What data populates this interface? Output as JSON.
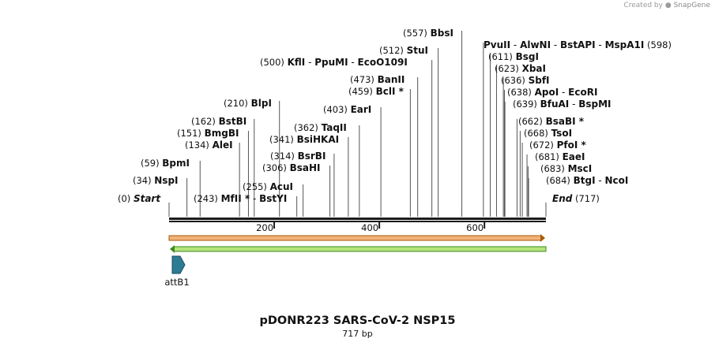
{
  "watermark": {
    "prefix": "Created by",
    "brand": "SnapGene"
  },
  "plasmid": {
    "name": "pDONR223 SARS-CoV-2 NSP15",
    "length_label": "717 bp",
    "length": 717
  },
  "ruler": {
    "ticks": [
      200,
      400,
      600
    ]
  },
  "start_site": {
    "pos_label": "(0)",
    "label": "Start",
    "position": 0
  },
  "end_site": {
    "pos_label": "(717)",
    "label": "End",
    "position": 717
  },
  "sites": [
    {
      "pos_label": "(34)",
      "names": [
        "NspI"
      ],
      "position": 34
    },
    {
      "pos_label": "(59)",
      "names": [
        "BpmI"
      ],
      "position": 59
    },
    {
      "pos_label": "(134)",
      "names": [
        "AleI"
      ],
      "position": 134
    },
    {
      "pos_label": "(151)",
      "names": [
        "BmgBI"
      ],
      "position": 151
    },
    {
      "pos_label": "(162)",
      "names": [
        "BstBI"
      ],
      "position": 162
    },
    {
      "pos_label": "(210)",
      "names": [
        "BlpI"
      ],
      "position": 210
    },
    {
      "pos_label": "(243)",
      "names": [
        "MfII *",
        "BstYI"
      ],
      "position": 243
    },
    {
      "pos_label": "(255)",
      "names": [
        "AcuI"
      ],
      "position": 255
    },
    {
      "pos_label": "(306)",
      "names": [
        "BsaHI"
      ],
      "position": 306
    },
    {
      "pos_label": "(314)",
      "names": [
        "BsrBI"
      ],
      "position": 314
    },
    {
      "pos_label": "(341)",
      "names": [
        "BsiHKAI"
      ],
      "position": 341
    },
    {
      "pos_label": "(362)",
      "names": [
        "TaqII"
      ],
      "position": 362
    },
    {
      "pos_label": "(403)",
      "names": [
        "EarI"
      ],
      "position": 403
    },
    {
      "pos_label": "(459)",
      "names": [
        "BclI *"
      ],
      "position": 459
    },
    {
      "pos_label": "(473)",
      "names": [
        "BanII"
      ],
      "position": 473
    },
    {
      "pos_label": "(500)",
      "names": [
        "KflI",
        "PpuMI",
        "EcoO109I"
      ],
      "position": 500
    },
    {
      "pos_label": "(512)",
      "names": [
        "StuI"
      ],
      "position": 512
    },
    {
      "pos_label": "(557)",
      "names": [
        "BbsI"
      ],
      "position": 557
    },
    {
      "pos_label": "(598)",
      "names": [
        "PvuII",
        "AlwNI",
        "BstAPI",
        "MspA1I"
      ],
      "position": 598
    },
    {
      "pos_label": "(611)",
      "names": [
        "BsgI"
      ],
      "position": 611
    },
    {
      "pos_label": "(623)",
      "names": [
        "XbaI"
      ],
      "position": 623
    },
    {
      "pos_label": "(636)",
      "names": [
        "SbfI"
      ],
      "position": 636
    },
    {
      "pos_label": "(638)",
      "names": [
        "ApoI",
        "EcoRI"
      ],
      "position": 638
    },
    {
      "pos_label": "(639)",
      "names": [
        "BfuAI",
        "BspMI"
      ],
      "position": 639
    },
    {
      "pos_label": "(662)",
      "names": [
        "BsaBI *"
      ],
      "position": 662
    },
    {
      "pos_label": "(668)",
      "names": [
        "TsoI"
      ],
      "position": 668
    },
    {
      "pos_label": "(672)",
      "names": [
        "PfoI *"
      ],
      "position": 672
    },
    {
      "pos_label": "(681)",
      "names": [
        "EaeI"
      ],
      "position": 681
    },
    {
      "pos_label": "(683)",
      "names": [
        "MscI"
      ],
      "position": 683
    },
    {
      "pos_label": "(684)",
      "names": [
        "BtgI",
        "NcoI"
      ],
      "position": 684
    }
  ],
  "features": [
    {
      "name": "forward-orf",
      "direction": "forward",
      "fill": "#f2b27a",
      "stroke": "#a85a00"
    },
    {
      "name": "reverse-orf",
      "direction": "reverse",
      "fill": "#b5e37a",
      "stroke": "#3c8a1e"
    },
    {
      "name": "attB1",
      "label": "attB1",
      "fill": "#2e7b94",
      "stroke": "#1c4e5e"
    }
  ],
  "colors": {
    "backbone": "#1a1a1a",
    "lines": "#555555"
  }
}
